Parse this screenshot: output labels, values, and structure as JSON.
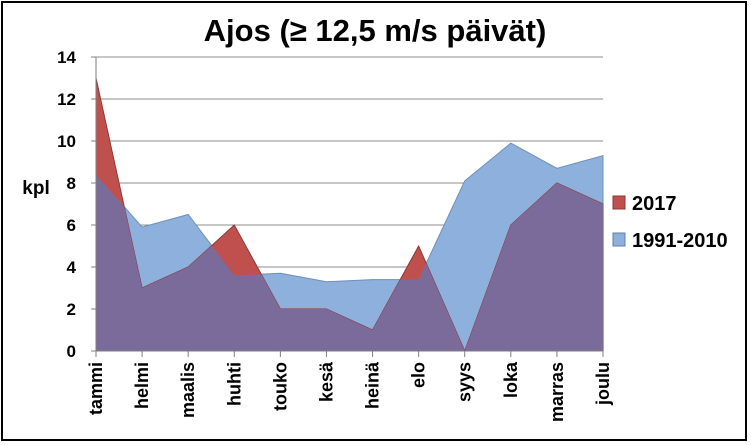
{
  "chart_data": {
    "type": "area",
    "title": "Ajos (≥ 12,5 m/s päivät)",
    "ylabel": "kpl",
    "xlabel": "",
    "categories": [
      "tammi",
      "helmi",
      "maalis",
      "huhti",
      "touko",
      "kesä",
      "heinä",
      "elo",
      "syys",
      "loka",
      "marras",
      "joulu"
    ],
    "ylim": [
      0,
      14
    ],
    "yticks": [
      0,
      2,
      4,
      6,
      8,
      10,
      12,
      14
    ],
    "grid": true,
    "legend_position": "right",
    "series": [
      {
        "name": "2017",
        "color": "#C0504D",
        "values": [
          13,
          3,
          4,
          6,
          2,
          2,
          1,
          5,
          0,
          6,
          8,
          7
        ]
      },
      {
        "name": "1991-2010",
        "color": "#8EB0DD",
        "values": [
          8.4,
          5.9,
          6.5,
          3.6,
          3.7,
          3.3,
          3.4,
          3.4,
          8.1,
          9.9,
          8.7,
          9.3
        ]
      }
    ],
    "overlap_color": "#7B6B9A"
  }
}
